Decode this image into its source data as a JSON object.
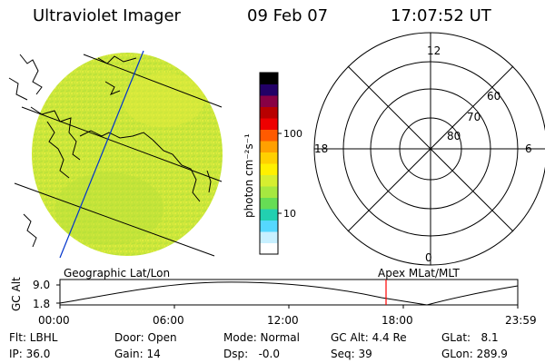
{
  "header": {
    "title": "Ultraviolet Imager",
    "date": "09 Feb 07",
    "time": "17:07:52 UT"
  },
  "colors": {
    "image_fill": "#cfe63a",
    "image_fill_2": "#e4ef3c",
    "coast": "#000000",
    "grid_lines": "#000000",
    "meridian": "#0033cc",
    "time_marker": "#ff0000"
  },
  "colorbar": {
    "unit_label": "photon cm⁻²s⁻¹",
    "ticks": [
      "100",
      "10"
    ],
    "stops": [
      "#ffffff",
      "#c8f0ff",
      "#55d8ff",
      "#22d0b0",
      "#66dd55",
      "#a6e840",
      "#d6ee30",
      "#fff000",
      "#ffd000",
      "#ffa000",
      "#ff5a00",
      "#ee0000",
      "#b80000",
      "#880044",
      "#220066",
      "#000000"
    ]
  },
  "polar": {
    "labels": {
      "top": "12",
      "bottom": "0",
      "left": "18",
      "right": "6"
    },
    "lat_labels": [
      "60",
      "70",
      "80"
    ]
  },
  "strip": {
    "left_label": "Geographic Lat/Lon",
    "right_label": "Apex MLat/MLT",
    "axis_title": "GC Alt",
    "y_ticks": [
      "9.0",
      "1.8"
    ],
    "x_ticks": [
      "00:00",
      "06:00",
      "12:00",
      "18:00",
      "23:59"
    ],
    "marker_time": "17:07"
  },
  "info": {
    "row1": [
      {
        "key": "filter",
        "text": "Flt: LBHL"
      },
      {
        "key": "door",
        "text": "Door: Open"
      },
      {
        "key": "mode",
        "text": "Mode: Normal"
      },
      {
        "key": "gc_alt",
        "text": "GC Alt: 4.4 Re"
      },
      {
        "key": "glat",
        "text": "GLat:   8.1"
      }
    ],
    "row2": [
      {
        "key": "ip",
        "text": "IP: 36.0"
      },
      {
        "key": "gain",
        "text": "Gain: 14"
      },
      {
        "key": "dsp",
        "text": "Dsp:   -0.0"
      },
      {
        "key": "seq",
        "text": "Seq: 39"
      },
      {
        "key": "glon",
        "text": "GLon: 289.9"
      }
    ]
  }
}
